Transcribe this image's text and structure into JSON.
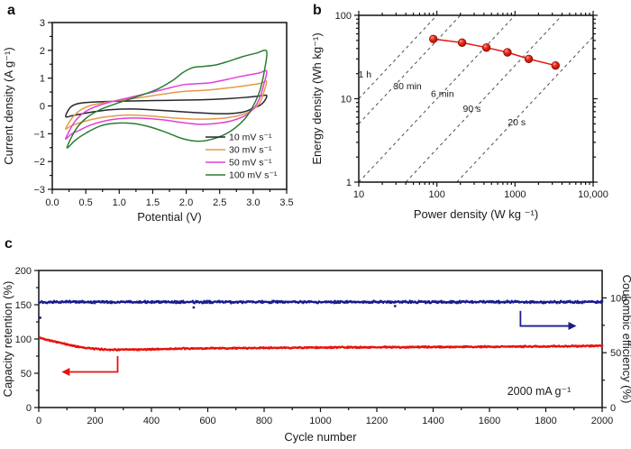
{
  "panels": {
    "a": "a",
    "b": "b",
    "c": "c"
  },
  "colors": {
    "text": "#1a1a1a",
    "axis": "#111111",
    "guide_line": "#3c3c3c",
    "ragone_red": "#e3170f",
    "ragone_red_edge": "#7a0000",
    "retention_red": "#e8120c",
    "efficiency_blue": "#1a1c8e"
  },
  "chart_data": [
    {
      "id": "a",
      "type": "line",
      "title": "",
      "xlabel": "Potential (V)",
      "ylabel": "Current density (A g⁻¹)",
      "xlim": [
        0,
        3.5
      ],
      "ylim": [
        -3,
        3
      ],
      "xticks": [
        0.0,
        0.5,
        1.0,
        1.5,
        2.0,
        2.5,
        3.0,
        3.5
      ],
      "xtick_labels": [
        "0.0",
        "0.5",
        "1.0",
        "1.5",
        "2.0",
        "2.5",
        "3.0",
        "3.5"
      ],
      "yticks": [
        -3,
        -2,
        -1,
        0,
        1,
        2,
        3
      ],
      "ytick_labels": [
        "−3",
        "−2",
        "−1",
        "0",
        "1",
        "2",
        "3"
      ],
      "grid": false,
      "legend_position": "lower right",
      "series": [
        {
          "name": "10 mV s⁻¹",
          "color": "#26262e",
          "loop": [
            [
              0.2,
              -0.38
            ],
            [
              0.27,
              -0.05
            ],
            [
              0.38,
              0.08
            ],
            [
              0.55,
              0.13
            ],
            [
              0.8,
              0.16
            ],
            [
              1.2,
              0.18
            ],
            [
              1.7,
              0.2
            ],
            [
              2.2,
              0.22
            ],
            [
              2.6,
              0.26
            ],
            [
              2.9,
              0.31
            ],
            [
              3.1,
              0.36
            ],
            [
              3.2,
              0.38
            ],
            [
              3.17,
              0.18
            ],
            [
              3.1,
              0.02
            ],
            [
              3.0,
              -0.08
            ],
            [
              2.85,
              -0.22
            ],
            [
              2.6,
              -0.28
            ],
            [
              2.3,
              -0.26
            ],
            [
              1.95,
              -0.21
            ],
            [
              1.55,
              -0.15
            ],
            [
              1.2,
              -0.11
            ],
            [
              0.9,
              -0.13
            ],
            [
              0.65,
              -0.2
            ],
            [
              0.45,
              -0.28
            ],
            [
              0.3,
              -0.35
            ]
          ]
        },
        {
          "name": "30 mV s⁻¹",
          "color": "#e59a45",
          "loop": [
            [
              0.2,
              -0.82
            ],
            [
              0.3,
              -0.42
            ],
            [
              0.42,
              -0.15
            ],
            [
              0.58,
              0.02
            ],
            [
              0.8,
              0.13
            ],
            [
              1.1,
              0.23
            ],
            [
              1.45,
              0.35
            ],
            [
              1.75,
              0.46
            ],
            [
              2.0,
              0.53
            ],
            [
              2.2,
              0.55
            ],
            [
              2.45,
              0.6
            ],
            [
              2.7,
              0.67
            ],
            [
              2.95,
              0.75
            ],
            [
              3.12,
              0.82
            ],
            [
              3.2,
              0.88
            ],
            [
              3.16,
              0.5
            ],
            [
              3.1,
              0.12
            ],
            [
              3.0,
              -0.12
            ],
            [
              2.85,
              -0.3
            ],
            [
              2.62,
              -0.42
            ],
            [
              2.35,
              -0.47
            ],
            [
              2.1,
              -0.47
            ],
            [
              1.8,
              -0.43
            ],
            [
              1.45,
              -0.36
            ],
            [
              1.15,
              -0.33
            ],
            [
              0.88,
              -0.37
            ],
            [
              0.62,
              -0.47
            ],
            [
              0.42,
              -0.6
            ],
            [
              0.28,
              -0.72
            ]
          ]
        },
        {
          "name": "50 mV s⁻¹",
          "color": "#e33fd8",
          "loop": [
            [
              0.2,
              -1.18
            ],
            [
              0.32,
              -0.62
            ],
            [
              0.45,
              -0.28
            ],
            [
              0.62,
              -0.05
            ],
            [
              0.85,
              0.13
            ],
            [
              1.15,
              0.3
            ],
            [
              1.45,
              0.47
            ],
            [
              1.72,
              0.63
            ],
            [
              1.95,
              0.76
            ],
            [
              2.15,
              0.8
            ],
            [
              2.35,
              0.83
            ],
            [
              2.6,
              0.95
            ],
            [
              2.85,
              1.08
            ],
            [
              3.08,
              1.18
            ],
            [
              3.2,
              1.25
            ],
            [
              3.16,
              0.78
            ],
            [
              3.1,
              0.3
            ],
            [
              3.02,
              -0.05
            ],
            [
              2.9,
              -0.32
            ],
            [
              2.7,
              -0.52
            ],
            [
              2.45,
              -0.63
            ],
            [
              2.2,
              -0.66
            ],
            [
              1.95,
              -0.6
            ],
            [
              1.65,
              -0.5
            ],
            [
              1.35,
              -0.44
            ],
            [
              1.05,
              -0.45
            ],
            [
              0.8,
              -0.53
            ],
            [
              0.58,
              -0.68
            ],
            [
              0.4,
              -0.88
            ],
            [
              0.28,
              -1.02
            ]
          ]
        },
        {
          "name": "100 mV s⁻¹",
          "color": "#2a7d33",
          "loop": [
            [
              0.22,
              -1.5
            ],
            [
              0.35,
              -0.85
            ],
            [
              0.5,
              -0.45
            ],
            [
              0.7,
              -0.15
            ],
            [
              0.95,
              0.08
            ],
            [
              1.25,
              0.32
            ],
            [
              1.55,
              0.58
            ],
            [
              1.8,
              0.92
            ],
            [
              1.95,
              1.2
            ],
            [
              2.1,
              1.38
            ],
            [
              2.25,
              1.42
            ],
            [
              2.45,
              1.48
            ],
            [
              2.65,
              1.62
            ],
            [
              2.85,
              1.78
            ],
            [
              3.05,
              1.9
            ],
            [
              3.2,
              1.97
            ],
            [
              3.17,
              1.3
            ],
            [
              3.1,
              0.55
            ],
            [
              3.0,
              0.0
            ],
            [
              2.88,
              -0.45
            ],
            [
              2.68,
              -0.88
            ],
            [
              2.45,
              -1.15
            ],
            [
              2.2,
              -1.27
            ],
            [
              1.95,
              -1.18
            ],
            [
              1.7,
              -0.95
            ],
            [
              1.45,
              -0.75
            ],
            [
              1.2,
              -0.63
            ],
            [
              0.95,
              -0.62
            ],
            [
              0.72,
              -0.72
            ],
            [
              0.5,
              -0.98
            ],
            [
              0.35,
              -1.22
            ]
          ]
        }
      ]
    },
    {
      "id": "b",
      "type": "scatter",
      "title": "",
      "xlabel": "Power density (W kg ⁻¹)",
      "ylabel": "Energy density (Wh kg⁻¹)",
      "xscale": "log",
      "yscale": "log",
      "xlim": [
        10,
        10000
      ],
      "ylim": [
        1,
        100
      ],
      "xtick_labels": [
        "10",
        "100",
        "1000",
        "10,000"
      ],
      "ytick_labels": [
        "1",
        "10",
        "100"
      ],
      "grid": false,
      "series": [
        {
          "name": "energy-vs-power",
          "color": "#e3170f",
          "x": [
            90,
            210,
            430,
            800,
            1500,
            3300
          ],
          "y": [
            52,
            47,
            41,
            36,
            30,
            25
          ]
        }
      ],
      "guide_lines": [
        {
          "label": "1 h",
          "t_hours": 1.0,
          "label_at": [
            12,
            18
          ]
        },
        {
          "label": "30 min",
          "t_hours": 0.5,
          "label_at": [
            42,
            13
          ]
        },
        {
          "label": "6 min",
          "t_hours": 0.1,
          "label_at": [
            118,
            10.5
          ]
        },
        {
          "label": "90 s",
          "t_hours": 0.025,
          "label_at": [
            280,
            7
          ]
        },
        {
          "label": "20 s",
          "t_hours": 0.005556,
          "label_at": [
            1050,
            4.8
          ]
        }
      ]
    },
    {
      "id": "c",
      "type": "scatter",
      "title": "",
      "xlabel": "Cycle number",
      "ylabel_left": "Capacity retention (%)",
      "ylabel_right": "Coulombic efficiency (%)",
      "xlim": [
        0,
        2000
      ],
      "ylim_left": [
        0,
        200
      ],
      "right_axis_100_at_left": 160,
      "xticks": [
        0,
        200,
        400,
        600,
        800,
        1000,
        1200,
        1400,
        1600,
        1800,
        2000
      ],
      "left_ticks": [
        0,
        50,
        100,
        150,
        200
      ],
      "left_tick_labels": [
        "0",
        "50",
        "100",
        "150",
        "200"
      ],
      "right_ticks": [
        0,
        50,
        100
      ],
      "right_tick_labels": [
        "0",
        "50",
        "100"
      ],
      "annotation": "2000 mA g⁻¹",
      "series": [
        {
          "name": "capacity-retention",
          "color": "#e8120c",
          "axis": "left",
          "noise": 1.3,
          "anchors": [
            [
              0,
              102
            ],
            [
              20,
              100
            ],
            [
              40,
              98
            ],
            [
              60,
              96
            ],
            [
              80,
              94
            ],
            [
              100,
              92
            ],
            [
              130,
              89.5
            ],
            [
              160,
              87.5
            ],
            [
              200,
              85.5
            ],
            [
              250,
              84.5
            ],
            [
              300,
              84.3
            ],
            [
              400,
              85
            ],
            [
              500,
              85.8
            ],
            [
              600,
              86.3
            ],
            [
              700,
              86.6
            ],
            [
              800,
              87
            ],
            [
              900,
              87.2
            ],
            [
              1000,
              87.5
            ],
            [
              1200,
              88
            ],
            [
              1400,
              88.3
            ],
            [
              1600,
              88.7
            ],
            [
              1800,
              89.2
            ],
            [
              2000,
              90
            ]
          ],
          "outliers": []
        },
        {
          "name": "coulombic-efficiency",
          "color": "#1a1c8e",
          "axis": "left",
          "noise": 2.1,
          "anchors": [
            [
              0,
              154
            ],
            [
              2000,
              154
            ]
          ],
          "outliers": [
            [
              5,
              131
            ],
            [
              550,
              146
            ],
            [
              1265,
              148
            ]
          ]
        }
      ],
      "arrows": [
        {
          "name": "retention-arrow",
          "color": "#e8120c",
          "x": 280,
          "y_from": 75,
          "y_to": 52,
          "x_end": 110,
          "direction": "left"
        },
        {
          "name": "efficiency-arrow",
          "color": "#1a1c8e",
          "x": 1710,
          "y_from": 141,
          "y_to": 119,
          "x_end": 1880,
          "direction": "right"
        }
      ]
    }
  ]
}
